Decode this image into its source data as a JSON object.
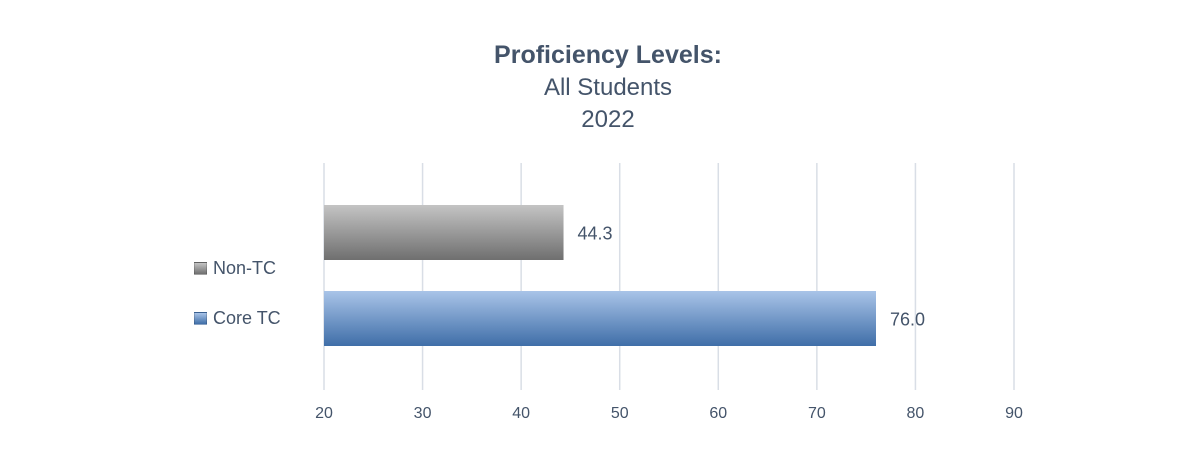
{
  "chart_data": {
    "type": "bar",
    "orientation": "horizontal",
    "title": "Proficiency Levels:",
    "subtitle_lines": [
      "All Students",
      "2022"
    ],
    "categories": [
      "Non-TC",
      "Core TC"
    ],
    "series": [
      {
        "values": [
          44.3,
          76.0
        ]
      }
    ],
    "data_labels": [
      "44.3",
      "76.0"
    ],
    "xlim": [
      20,
      90
    ],
    "x_ticks": [
      20,
      30,
      40,
      50,
      60,
      70,
      80,
      90
    ],
    "x_tick_labels": [
      "20",
      "30",
      "40",
      "50",
      "60",
      "70",
      "80",
      "90"
    ],
    "grid": "vertical",
    "legend_position": "left",
    "legend": [
      "Non-TC",
      "Core TC"
    ],
    "colors": {
      "Non-TC": {
        "top": "#c4c4c4",
        "bottom": "#6f6f6f"
      },
      "Core TC": {
        "top": "#a9c4e8",
        "bottom": "#3f6ea8"
      },
      "text": "#44546a",
      "grid": "#d9dee6"
    }
  }
}
